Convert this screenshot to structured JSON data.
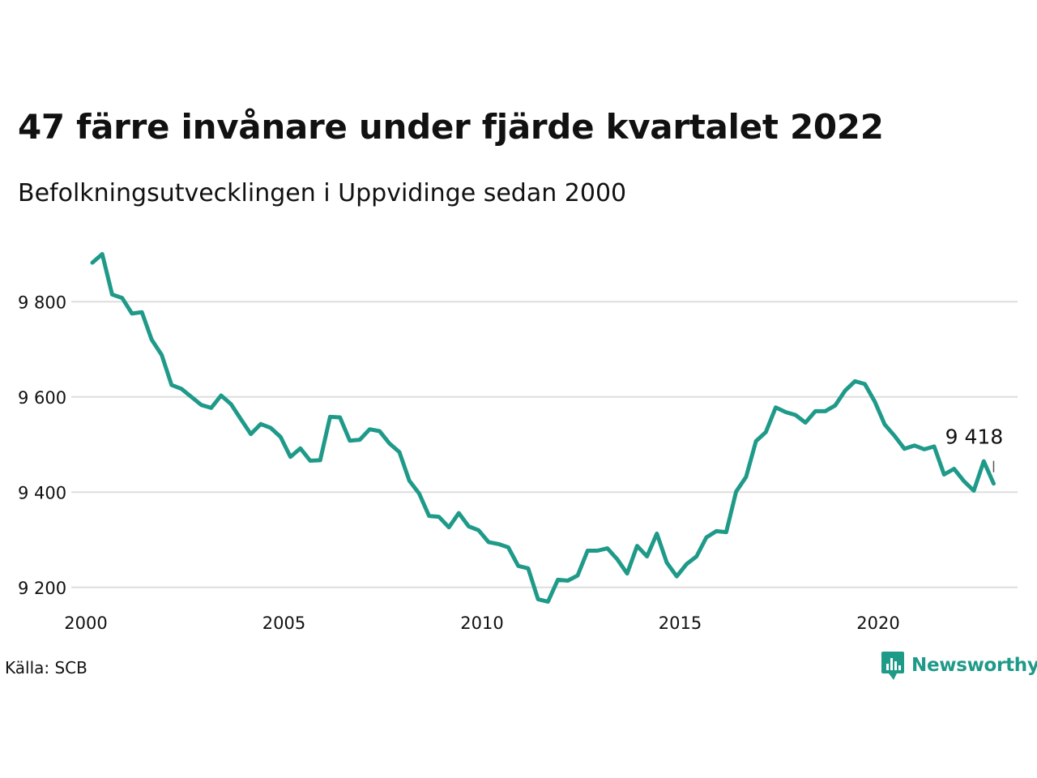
{
  "title": "47 färre invånare under fjärde kvartalet 2022",
  "subtitle": "Befolkningsutvecklingen i Uppvidinge sedan 2000",
  "source": "Källa: SCB",
  "logo_text": "Newsworthy",
  "colors": {
    "line": "#1f9a89",
    "grid": "#dddddd",
    "text": "#111111",
    "brand": "#1f9a89"
  },
  "chart_data": {
    "type": "line",
    "title": "47 färre invånare under fjärde kvartalet 2022",
    "xlabel": "",
    "ylabel": "",
    "x_tick_labels": [
      "2000",
      "2005",
      "2010",
      "2015",
      "2020"
    ],
    "y_tick_labels": [
      "9 200",
      "9 400",
      "9 600",
      "9 800"
    ],
    "y_ticks": [
      9200,
      9400,
      9600,
      9800
    ],
    "ylim": [
      9140,
      9940
    ],
    "x_start": "2000 Q1",
    "grid": true,
    "end_label": "9 418",
    "x": [
      "2000 Q1",
      "2000 Q2",
      "2000 Q3",
      "2000 Q4",
      "2001 Q1",
      "2001 Q2",
      "2001 Q3",
      "2001 Q4",
      "2002 Q1",
      "2002 Q2",
      "2002 Q3",
      "2002 Q4",
      "2003 Q1",
      "2003 Q2",
      "2003 Q3",
      "2003 Q4",
      "2004 Q1",
      "2004 Q2",
      "2004 Q3",
      "2004 Q4",
      "2005 Q1",
      "2005 Q2",
      "2005 Q3",
      "2005 Q4",
      "2006 Q1",
      "2006 Q2",
      "2006 Q3",
      "2006 Q4",
      "2007 Q1",
      "2007 Q2",
      "2007 Q3",
      "2007 Q4",
      "2008 Q1",
      "2008 Q2",
      "2008 Q3",
      "2008 Q4",
      "2009 Q1",
      "2009 Q2",
      "2009 Q3",
      "2009 Q4",
      "2010 Q1",
      "2010 Q2",
      "2010 Q3",
      "2010 Q4",
      "2011 Q1",
      "2011 Q2",
      "2011 Q3",
      "2011 Q4",
      "2012 Q1",
      "2012 Q2",
      "2012 Q3",
      "2012 Q4",
      "2013 Q1",
      "2013 Q2",
      "2013 Q3",
      "2013 Q4",
      "2014 Q1",
      "2014 Q2",
      "2014 Q3",
      "2014 Q4",
      "2015 Q1",
      "2015 Q2",
      "2015 Q3",
      "2015 Q4",
      "2016 Q1",
      "2016 Q2",
      "2016 Q3",
      "2016 Q4",
      "2017 Q1",
      "2017 Q2",
      "2017 Q3",
      "2017 Q4",
      "2018 Q1",
      "2018 Q2",
      "2018 Q3",
      "2018 Q4",
      "2019 Q1",
      "2019 Q2",
      "2019 Q3",
      "2019 Q4",
      "2020 Q1",
      "2020 Q2",
      "2020 Q3",
      "2020 Q4",
      "2021 Q1",
      "2021 Q2",
      "2021 Q3",
      "2021 Q4",
      "2022 Q1",
      "2022 Q2",
      "2022 Q3",
      "2022 Q4"
    ],
    "series": [
      {
        "values": [
          9882,
          9900,
          9815,
          9808,
          9775,
          9778,
          9720,
          9688,
          9625,
          9617,
          9600,
          9583,
          9577,
          9603,
          9585,
          9553,
          9522,
          9543,
          9535,
          9516,
          9474,
          9492,
          9466,
          9467,
          9558,
          9557,
          9508,
          9510,
          9532,
          9528,
          9502,
          9484,
          9424,
          9397,
          9350,
          9348,
          9326,
          9356,
          9328,
          9320,
          9295,
          9291,
          9284,
          9245,
          9240,
          9175,
          9170,
          9216,
          9214,
          9225,
          9277,
          9277,
          9282,
          9259,
          9229,
          9287,
          9265,
          9313,
          9252,
          9223,
          9249,
          9265,
          9305,
          9318,
          9316,
          9401,
          9432,
          9507,
          9526,
          9578,
          9568,
          9562,
          9546,
          9570,
          9570,
          9582,
          9613,
          9633,
          9627,
          9590,
          9542,
          9518,
          9491,
          9498,
          9490,
          9496,
          9437,
          9449,
          9423,
          9403,
          9465,
          9418
        ]
      }
    ]
  }
}
